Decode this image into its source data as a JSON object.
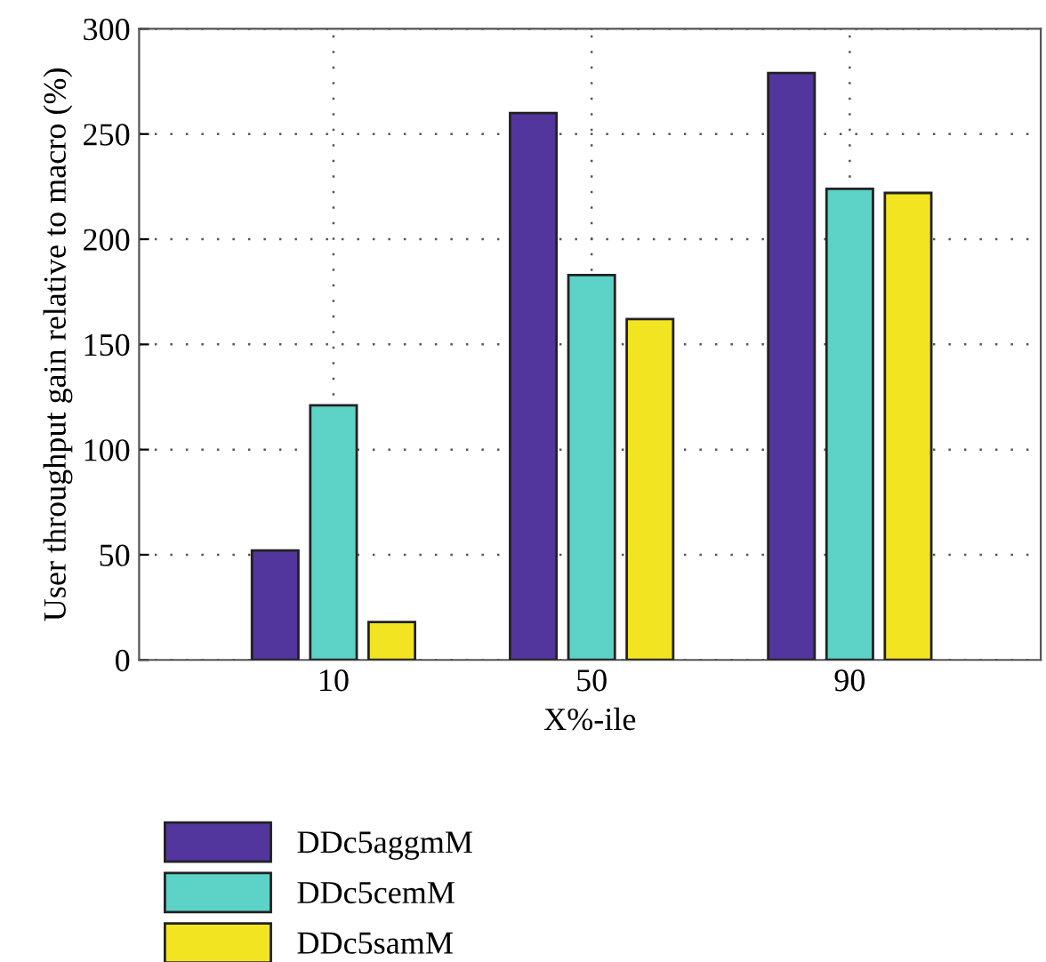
{
  "chart_data": {
    "type": "bar",
    "xlabel": "X%-ile",
    "ylabel": "User throughput gain relative to macro (%)",
    "categories": [
      "10",
      "50",
      "90"
    ],
    "series": [
      {
        "name": "DDc5aggmM",
        "color": "#52369e",
        "values": [
          52,
          260,
          279
        ]
      },
      {
        "name": "DDc5cemM",
        "color": "#5dd3c8",
        "values": [
          121,
          183,
          224
        ]
      },
      {
        "name": "DDc5samM",
        "color": "#f3e421",
        "values": [
          18,
          162,
          222
        ]
      }
    ],
    "ylim": [
      0,
      300
    ],
    "yticks": [
      0,
      50,
      100,
      150,
      200,
      250,
      300
    ],
    "grid": true,
    "legend": "bottom left"
  }
}
